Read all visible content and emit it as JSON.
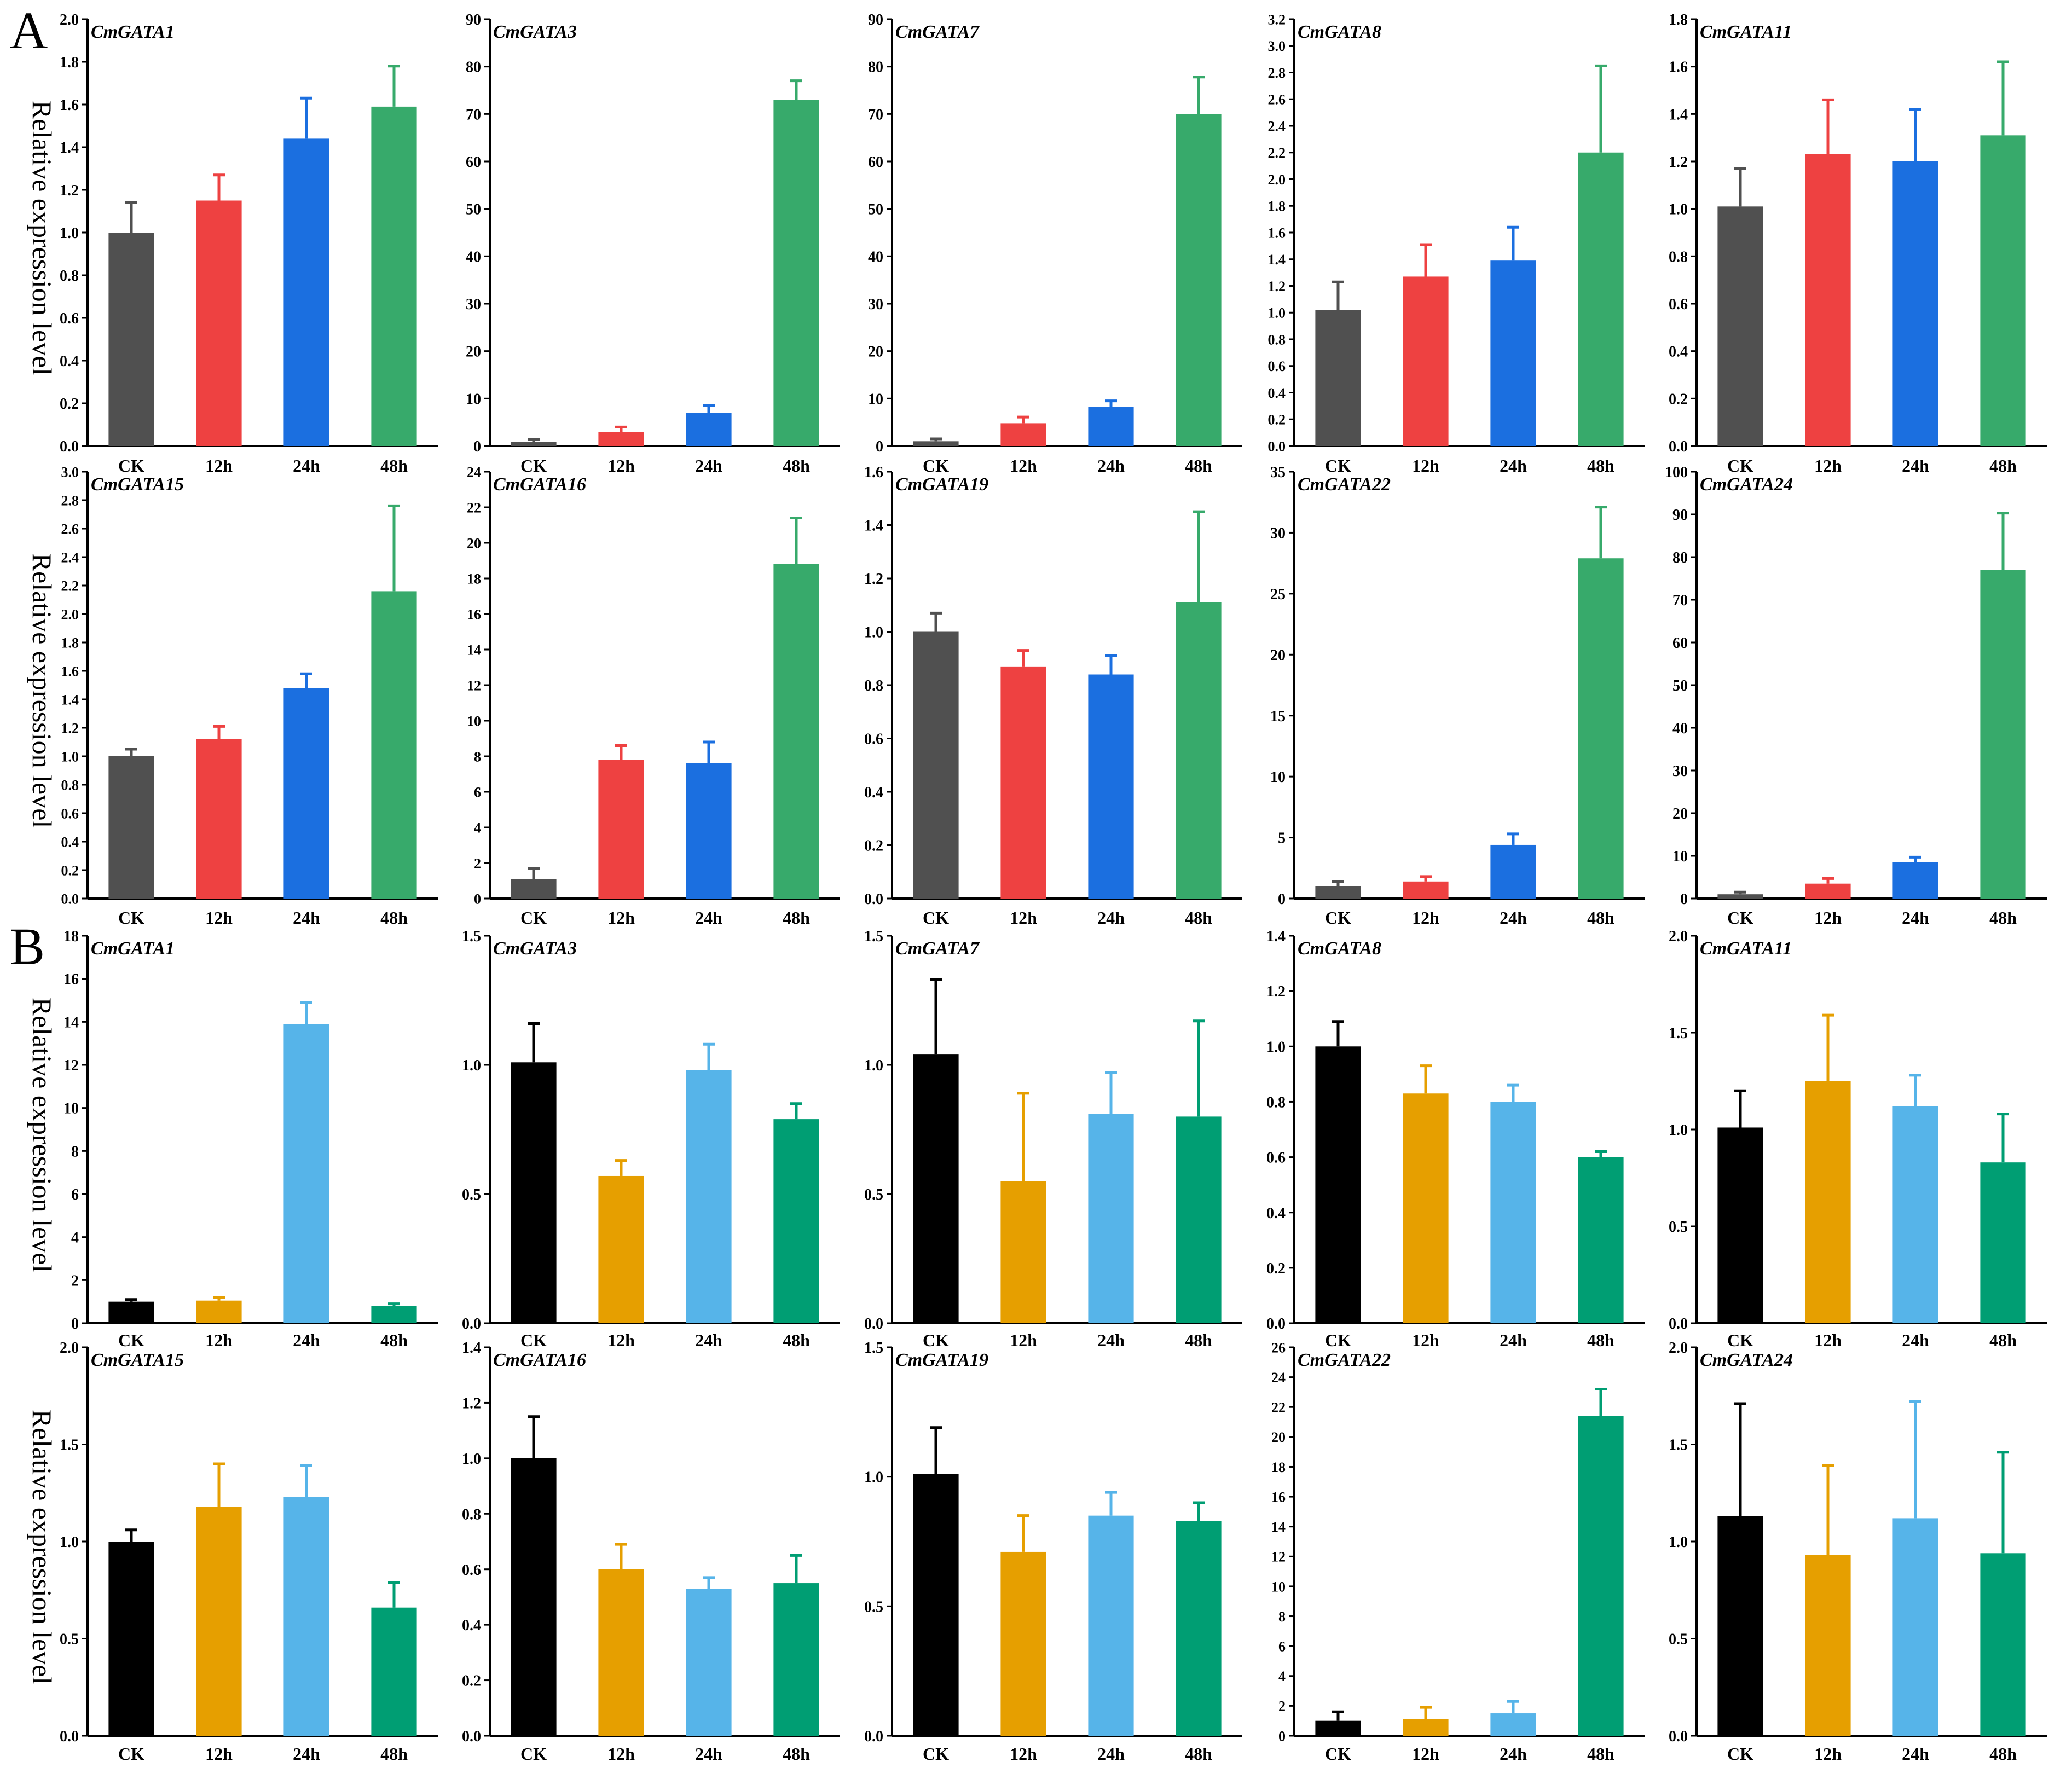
{
  "panel_a": {
    "letter": "A",
    "ylabel": "Relative expression level",
    "colors": [
      "#505050",
      "#ee4141",
      "#1b6fe0",
      "#37aa6b"
    ]
  },
  "panel_b": {
    "letter": "B",
    "ylabel": "Relative expression level",
    "colors": [
      "#000000",
      "#e69f00",
      "#56b4e9",
      "#009e73"
    ]
  },
  "chart_data": [
    {
      "type": "bar",
      "panel": "A",
      "title": "CmGATA1",
      "categories": [
        "CK",
        "12h",
        "24h",
        "48h"
      ],
      "values": [
        1.0,
        1.15,
        1.44,
        1.59
      ],
      "errors": [
        0.14,
        0.12,
        0.19,
        0.19
      ],
      "ylim": [
        0,
        2.0
      ],
      "yticks": [
        "0.0",
        "0.2",
        "0.4",
        "0.6",
        "0.8",
        "1.0",
        "1.2",
        "1.4",
        "1.6",
        "1.8",
        "2.0"
      ]
    },
    {
      "type": "bar",
      "panel": "A",
      "title": "CmGATA3",
      "categories": [
        "CK",
        "12h",
        "24h",
        "48h"
      ],
      "values": [
        0.9,
        3.0,
        7.0,
        73.0
      ],
      "errors": [
        0.5,
        1.0,
        1.5,
        4.0
      ],
      "ylim": [
        0,
        90
      ],
      "yticks": [
        "0",
        "10",
        "20",
        "30",
        "40",
        "50",
        "60",
        "70",
        "80",
        "90"
      ]
    },
    {
      "type": "bar",
      "panel": "A",
      "title": "CmGATA7",
      "categories": [
        "CK",
        "12h",
        "24h",
        "48h"
      ],
      "values": [
        1.0,
        4.8,
        8.3,
        70.0
      ],
      "errors": [
        0.5,
        1.3,
        1.2,
        7.8
      ],
      "ylim": [
        0,
        90
      ],
      "yticks": [
        "0",
        "10",
        "20",
        "30",
        "40",
        "50",
        "60",
        "70",
        "80",
        "90"
      ]
    },
    {
      "type": "bar",
      "panel": "A",
      "title": "CmGATA8",
      "categories": [
        "CK",
        "12h",
        "24h",
        "48h"
      ],
      "values": [
        1.02,
        1.27,
        1.39,
        2.2
      ],
      "errors": [
        0.21,
        0.24,
        0.25,
        0.65
      ],
      "ylim": [
        0,
        3.2
      ],
      "yticks": [
        "0.0",
        "0.2",
        "0.4",
        "0.6",
        "0.8",
        "1.0",
        "1.2",
        "1.4",
        "1.6",
        "1.8",
        "2.0",
        "2.2",
        "2.4",
        "2.6",
        "2.8",
        "3.0",
        "3.2"
      ]
    },
    {
      "type": "bar",
      "panel": "A",
      "title": "CmGATA11",
      "categories": [
        "CK",
        "12h",
        "24h",
        "48h"
      ],
      "values": [
        1.01,
        1.23,
        1.2,
        1.31
      ],
      "errors": [
        0.16,
        0.23,
        0.22,
        0.31
      ],
      "ylim": [
        0,
        1.8
      ],
      "yticks": [
        "0.0",
        "0.2",
        "0.4",
        "0.6",
        "0.8",
        "1.0",
        "1.2",
        "1.4",
        "1.6",
        "1.8"
      ]
    },
    {
      "type": "bar",
      "panel": "A",
      "title": "CmGATA15",
      "categories": [
        "CK",
        "12h",
        "24h",
        "48h"
      ],
      "values": [
        1.0,
        1.12,
        1.48,
        2.16
      ],
      "errors": [
        0.05,
        0.09,
        0.1,
        0.6
      ],
      "ylim": [
        0,
        3.0
      ],
      "yticks": [
        "0.0",
        "0.2",
        "0.4",
        "0.6",
        "0.8",
        "1.0",
        "1.2",
        "1.4",
        "1.6",
        "1.8",
        "2.0",
        "2.2",
        "2.4",
        "2.6",
        "2.8",
        "3.0"
      ]
    },
    {
      "type": "bar",
      "panel": "A",
      "title": "CmGATA16",
      "categories": [
        "CK",
        "12h",
        "24h",
        "48h"
      ],
      "values": [
        1.1,
        7.8,
        7.6,
        18.8
      ],
      "errors": [
        0.6,
        0.8,
        1.2,
        2.6
      ],
      "ylim": [
        0,
        24
      ],
      "yticks": [
        "0",
        "2",
        "4",
        "6",
        "8",
        "10",
        "12",
        "14",
        "16",
        "18",
        "20",
        "22",
        "24"
      ]
    },
    {
      "type": "bar",
      "panel": "A",
      "title": "CmGATA19",
      "categories": [
        "CK",
        "12h",
        "24h",
        "48h"
      ],
      "values": [
        1.0,
        0.87,
        0.84,
        1.11
      ],
      "errors": [
        0.07,
        0.06,
        0.07,
        0.34
      ],
      "ylim": [
        0,
        1.6
      ],
      "yticks": [
        "0.0",
        "0.2",
        "0.4",
        "0.6",
        "0.8",
        "1.0",
        "1.2",
        "1.4",
        "1.6"
      ]
    },
    {
      "type": "bar",
      "panel": "A",
      "title": "CmGATA22",
      "categories": [
        "CK",
        "12h",
        "24h",
        "48h"
      ],
      "values": [
        1.0,
        1.4,
        4.4,
        27.9
      ],
      "errors": [
        0.4,
        0.4,
        0.9,
        4.2
      ],
      "ylim": [
        0,
        35
      ],
      "yticks": [
        "0",
        "5",
        "10",
        "15",
        "20",
        "25",
        "30",
        "35"
      ]
    },
    {
      "type": "bar",
      "panel": "A",
      "title": "CmGATA24",
      "categories": [
        "CK",
        "12h",
        "24h",
        "48h"
      ],
      "values": [
        1.0,
        3.5,
        8.5,
        77.0
      ],
      "errors": [
        0.5,
        1.2,
        1.2,
        13.3
      ],
      "ylim": [
        0,
        100
      ],
      "yticks": [
        "0",
        "10",
        "20",
        "30",
        "40",
        "50",
        "60",
        "70",
        "80",
        "90",
        "100"
      ]
    },
    {
      "type": "bar",
      "panel": "B",
      "title": "CmGATA1",
      "categories": [
        "CK",
        "12h",
        "24h",
        "48h"
      ],
      "values": [
        1.0,
        1.05,
        13.9,
        0.8
      ],
      "errors": [
        0.1,
        0.15,
        1.0,
        0.1
      ],
      "ylim": [
        0,
        18
      ],
      "yticks": [
        "0",
        "2",
        "4",
        "6",
        "8",
        "10",
        "12",
        "14",
        "16",
        "18"
      ]
    },
    {
      "type": "bar",
      "panel": "B",
      "title": "CmGATA3",
      "categories": [
        "CK",
        "12h",
        "24h",
        "48h"
      ],
      "values": [
        1.01,
        0.57,
        0.98,
        0.79
      ],
      "errors": [
        0.15,
        0.06,
        0.1,
        0.06
      ],
      "ylim": [
        0,
        1.5
      ],
      "yticks": [
        "0.0",
        "0.5",
        "1.0",
        "1.5"
      ]
    },
    {
      "type": "bar",
      "panel": "B",
      "title": "CmGATA7",
      "categories": [
        "CK",
        "12h",
        "24h",
        "48h"
      ],
      "values": [
        1.04,
        0.55,
        0.81,
        0.8
      ],
      "errors": [
        0.29,
        0.34,
        0.16,
        0.37
      ],
      "ylim": [
        0,
        1.5
      ],
      "yticks": [
        "0.0",
        "0.5",
        "1.0",
        "1.5"
      ]
    },
    {
      "type": "bar",
      "panel": "B",
      "title": "CmGATA8",
      "categories": [
        "CK",
        "12h",
        "24h",
        "48h"
      ],
      "values": [
        1.0,
        0.83,
        0.8,
        0.6
      ],
      "errors": [
        0.09,
        0.1,
        0.06,
        0.02
      ],
      "ylim": [
        0,
        1.4
      ],
      "yticks": [
        "0.0",
        "0.2",
        "0.4",
        "0.6",
        "0.8",
        "1.0",
        "1.2",
        "1.4"
      ]
    },
    {
      "type": "bar",
      "panel": "B",
      "title": "CmGATA11",
      "categories": [
        "CK",
        "12h",
        "24h",
        "48h"
      ],
      "values": [
        1.01,
        1.25,
        1.12,
        0.83
      ],
      "errors": [
        0.19,
        0.34,
        0.16,
        0.25
      ],
      "ylim": [
        0,
        2.0
      ],
      "yticks": [
        "0.0",
        "0.5",
        "1.0",
        "1.5",
        "2.0"
      ]
    },
    {
      "type": "bar",
      "panel": "B",
      "title": "CmGATA15",
      "categories": [
        "CK",
        "12h",
        "24h",
        "48h"
      ],
      "values": [
        1.0,
        1.18,
        1.23,
        0.66
      ],
      "errors": [
        0.06,
        0.22,
        0.16,
        0.13
      ],
      "ylim": [
        0,
        2.0
      ],
      "yticks": [
        "0.0",
        "0.5",
        "1.0",
        "1.5",
        "2.0"
      ]
    },
    {
      "type": "bar",
      "panel": "B",
      "title": "CmGATA16",
      "categories": [
        "CK",
        "12h",
        "24h",
        "48h"
      ],
      "values": [
        1.0,
        0.6,
        0.53,
        0.55
      ],
      "errors": [
        0.15,
        0.09,
        0.04,
        0.1
      ],
      "ylim": [
        0,
        1.4
      ],
      "yticks": [
        "0.0",
        "0.2",
        "0.4",
        "0.6",
        "0.8",
        "1.0",
        "1.2",
        "1.4"
      ]
    },
    {
      "type": "bar",
      "panel": "B",
      "title": "CmGATA19",
      "categories": [
        "CK",
        "12h",
        "24h",
        "48h"
      ],
      "values": [
        1.01,
        0.71,
        0.85,
        0.83
      ],
      "errors": [
        0.18,
        0.14,
        0.09,
        0.07
      ],
      "ylim": [
        0,
        1.5
      ],
      "yticks": [
        "0.0",
        "0.5",
        "1.0",
        "1.5"
      ]
    },
    {
      "type": "bar",
      "panel": "B",
      "title": "CmGATA22",
      "categories": [
        "CK",
        "12h",
        "24h",
        "48h"
      ],
      "values": [
        1.0,
        1.1,
        1.5,
        21.4
      ],
      "errors": [
        0.6,
        0.8,
        0.8,
        1.8
      ],
      "ylim": [
        0,
        26
      ],
      "yticks": [
        "0",
        "2",
        "4",
        "6",
        "8",
        "10",
        "12",
        "14",
        "16",
        "18",
        "20",
        "22",
        "24",
        "26"
      ]
    },
    {
      "type": "bar",
      "panel": "B",
      "title": "CmGATA24",
      "categories": [
        "CK",
        "12h",
        "24h",
        "48h"
      ],
      "values": [
        1.13,
        0.93,
        1.12,
        0.94
      ],
      "errors": [
        0.58,
        0.46,
        0.6,
        0.52
      ],
      "ylim": [
        0,
        2.0
      ],
      "yticks": [
        "0.0",
        "0.5",
        "1.0",
        "1.5",
        "2.0"
      ]
    }
  ]
}
